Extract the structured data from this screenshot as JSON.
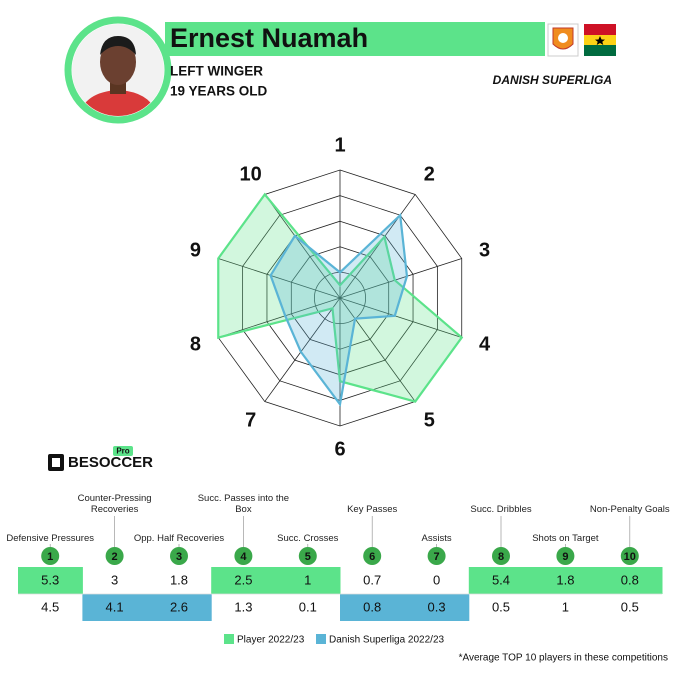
{
  "header": {
    "name": "Ernest Nuamah",
    "position": "LEFT WINGER",
    "age": "19 YEARS OLD",
    "league": "DANISH SUPERLIGA"
  },
  "chart_data": {
    "type": "radar",
    "categories": [
      "1",
      "2",
      "3",
      "4",
      "5",
      "6",
      "7",
      "8",
      "9",
      "10"
    ],
    "rlim": [
      0,
      1
    ],
    "rticks": [
      0.2,
      0.4,
      0.6,
      0.8,
      1
    ],
    "series": [
      {
        "name": "Player 2022/23",
        "color": "#5ce38a",
        "values": [
          0.1,
          0.59,
          0.45,
          1,
          1,
          0.65,
          0.1,
          1,
          1,
          1
        ]
      },
      {
        "name": "Danish Superliga 2022/23",
        "color": "#5ab4d6",
        "values": [
          0.2,
          0.8,
          0.55,
          0.45,
          0.2,
          0.83,
          0.52,
          0.45,
          0.57,
          0.6
        ]
      }
    ]
  },
  "table": {
    "metrics": [
      "Defensive Pressures",
      "Counter-Pressing Recoveries",
      "Opp. Half Recoveries",
      "Succ. Passes into the Box",
      "Succ. Crosses",
      "Key Passes",
      "Assists",
      "Succ. Dribbles",
      "Shots on Target",
      "Non-Penalty Goals"
    ],
    "player": [
      5.3,
      3,
      1.8,
      2.5,
      1,
      0.7,
      0,
      5.4,
      1.8,
      0.8
    ],
    "league": [
      4.5,
      4.1,
      2.6,
      1.3,
      0.1,
      0.8,
      0.3,
      0.5,
      1,
      0.5
    ]
  },
  "logo": {
    "text": "BESOCCER",
    "badge": "Pro"
  },
  "footnote": "*Average TOP 10 players in these competitions"
}
